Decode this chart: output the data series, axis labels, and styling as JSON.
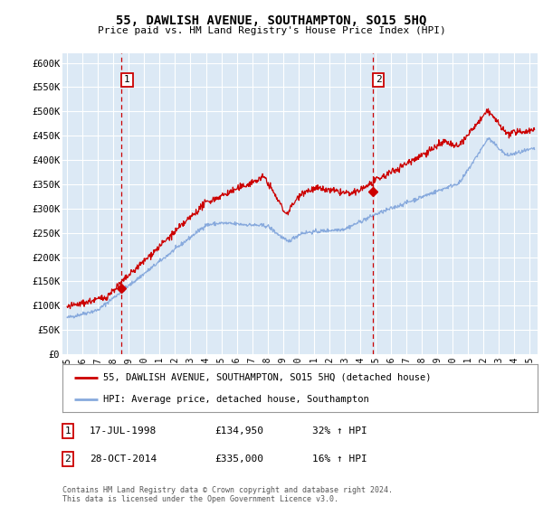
{
  "title": "55, DAWLISH AVENUE, SOUTHAMPTON, SO15 5HQ",
  "subtitle": "Price paid vs. HM Land Registry's House Price Index (HPI)",
  "bg_color": "#dce9f5",
  "grid_color": "#ffffff",
  "red_color": "#cc0000",
  "blue_color": "#88aadd",
  "sale1_date_x": 1998.54,
  "sale1_price": 134950,
  "sale2_date_x": 2014.83,
  "sale2_price": 335000,
  "legend_red": "55, DAWLISH AVENUE, SOUTHAMPTON, SO15 5HQ (detached house)",
  "legend_blue": "HPI: Average price, detached house, Southampton",
  "table_rows": [
    {
      "num": "1",
      "date": "17-JUL-1998",
      "price": "£134,950",
      "change": "32% ↑ HPI"
    },
    {
      "num": "2",
      "date": "28-OCT-2014",
      "price": "£335,000",
      "change": "16% ↑ HPI"
    }
  ],
  "footer": "Contains HM Land Registry data © Crown copyright and database right 2024.\nThis data is licensed under the Open Government Licence v3.0.",
  "ylim": [
    0,
    620000
  ],
  "yticks": [
    0,
    50000,
    100000,
    150000,
    200000,
    250000,
    300000,
    350000,
    400000,
    450000,
    500000,
    550000,
    600000
  ],
  "ytick_labels": [
    "£0",
    "£50K",
    "£100K",
    "£150K",
    "£200K",
    "£250K",
    "£300K",
    "£350K",
    "£400K",
    "£450K",
    "£500K",
    "£550K",
    "£600K"
  ],
  "xlim_start": 1994.7,
  "xlim_end": 2025.5,
  "xticks": [
    1995,
    1996,
    1997,
    1998,
    1999,
    2000,
    2001,
    2002,
    2003,
    2004,
    2005,
    2006,
    2007,
    2008,
    2009,
    2010,
    2011,
    2012,
    2013,
    2014,
    2015,
    2016,
    2017,
    2018,
    2019,
    2020,
    2021,
    2022,
    2023,
    2024,
    2025
  ]
}
